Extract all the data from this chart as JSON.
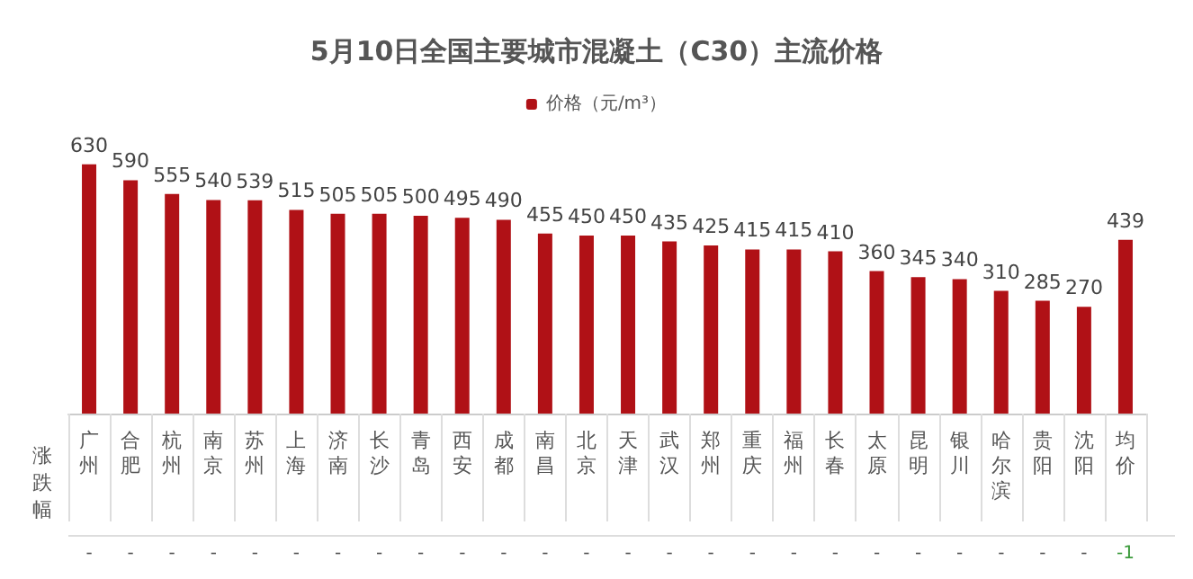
{
  "chart_data": {
    "type": "bar",
    "title": "5月10日全国主要城市混凝土（C30）主流价格",
    "categories": [
      "广州",
      "合肥",
      "杭州",
      "南京",
      "苏州",
      "上海",
      "济南",
      "长沙",
      "青岛",
      "西安",
      "成都",
      "南昌",
      "北京",
      "天津",
      "武汉",
      "郑州",
      "重庆",
      "福州",
      "长春",
      "太原",
      "昆明",
      "银川",
      "哈尔滨",
      "贵阳",
      "沈阳",
      "均价"
    ],
    "series": [
      {
        "name": "价格（元/m³）",
        "color": "#b01116",
        "values": [
          630,
          590,
          555,
          540,
          539,
          515,
          505,
          505,
          500,
          495,
          490,
          455,
          450,
          450,
          435,
          425,
          415,
          415,
          410,
          360,
          345,
          340,
          310,
          285,
          270,
          439
        ]
      }
    ],
    "data_labels": true,
    "legend": "top",
    "annotations": [
      "涨跌幅",
      "-",
      "-",
      "-",
      "-",
      "-",
      "-",
      "-",
      "-",
      "-",
      "-",
      "-",
      "-",
      "-",
      "-",
      "-",
      "-",
      "-",
      "-",
      "-",
      "-",
      "-",
      "-",
      "-",
      "-",
      "-",
      "-1"
    ]
  }
}
